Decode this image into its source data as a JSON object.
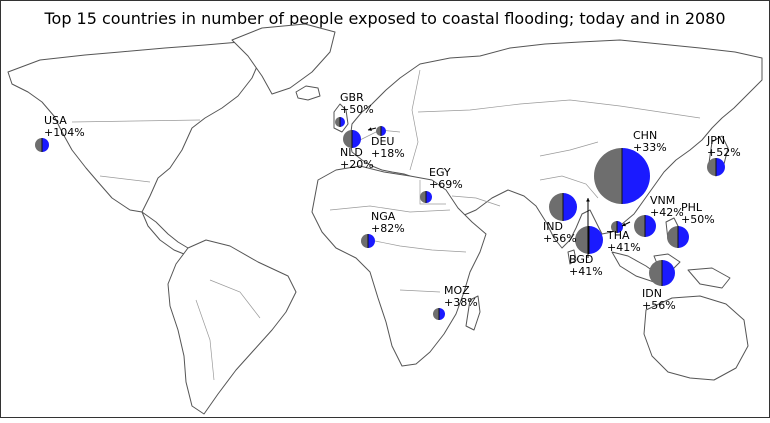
{
  "title": "Top 15 countries in number of people exposed to coastal flooding; today and in 2080",
  "colors": {
    "today": "#6e6e6e",
    "future": "#1a1aff",
    "land_stroke": "#555555",
    "background": "#ffffff"
  },
  "countries": [
    {
      "code": "USA",
      "change": "+104%"
    },
    {
      "code": "GBR",
      "change": "+50%"
    },
    {
      "code": "NLD",
      "change": "+20%"
    },
    {
      "code": "DEU",
      "change": "+18%"
    },
    {
      "code": "EGY",
      "change": "+69%"
    },
    {
      "code": "NGA",
      "change": "+82%"
    },
    {
      "code": "MOZ",
      "change": "+38%"
    },
    {
      "code": "IND",
      "change": "+56%"
    },
    {
      "code": "BGD",
      "change": "+41%"
    },
    {
      "code": "CHN",
      "change": "+33%"
    },
    {
      "code": "THA",
      "change": "+41%"
    },
    {
      "code": "VNM",
      "change": "+42%"
    },
    {
      "code": "PHL",
      "change": "+50%"
    },
    {
      "code": "IDN",
      "change": "+56%"
    },
    {
      "code": "JPN",
      "change": "+52%"
    }
  ]
}
